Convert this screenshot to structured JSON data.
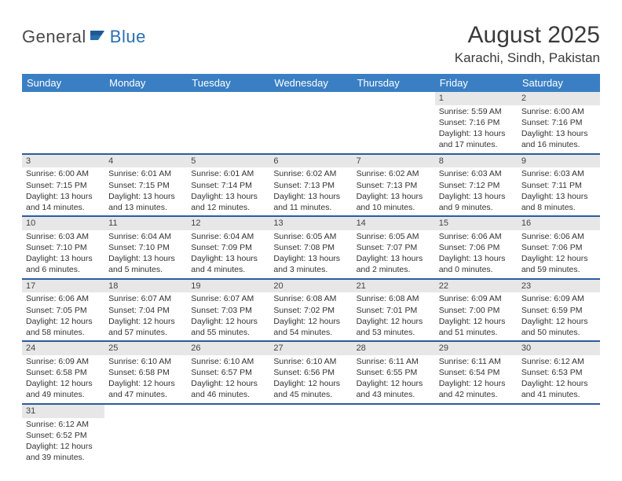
{
  "brand": {
    "part1": "General",
    "part2": "Blue"
  },
  "title": "August 2025",
  "location": "Karachi, Sindh, Pakistan",
  "colors": {
    "header_bg": "#3a7fc4",
    "header_text": "#ffffff",
    "row_divider": "#2b5d9e",
    "daynum_bg": "#e7e7e7",
    "brand_gray": "#4a4a4a",
    "brand_blue": "#2b6fb0"
  },
  "day_headers": [
    "Sunday",
    "Monday",
    "Tuesday",
    "Wednesday",
    "Thursday",
    "Friday",
    "Saturday"
  ],
  "weeks": [
    [
      {
        "n": "",
        "sr": "",
        "ss": "",
        "dl": ""
      },
      {
        "n": "",
        "sr": "",
        "ss": "",
        "dl": ""
      },
      {
        "n": "",
        "sr": "",
        "ss": "",
        "dl": ""
      },
      {
        "n": "",
        "sr": "",
        "ss": "",
        "dl": ""
      },
      {
        "n": "",
        "sr": "",
        "ss": "",
        "dl": ""
      },
      {
        "n": "1",
        "sr": "Sunrise: 5:59 AM",
        "ss": "Sunset: 7:16 PM",
        "dl": "Daylight: 13 hours and 17 minutes."
      },
      {
        "n": "2",
        "sr": "Sunrise: 6:00 AM",
        "ss": "Sunset: 7:16 PM",
        "dl": "Daylight: 13 hours and 16 minutes."
      }
    ],
    [
      {
        "n": "3",
        "sr": "Sunrise: 6:00 AM",
        "ss": "Sunset: 7:15 PM",
        "dl": "Daylight: 13 hours and 14 minutes."
      },
      {
        "n": "4",
        "sr": "Sunrise: 6:01 AM",
        "ss": "Sunset: 7:15 PM",
        "dl": "Daylight: 13 hours and 13 minutes."
      },
      {
        "n": "5",
        "sr": "Sunrise: 6:01 AM",
        "ss": "Sunset: 7:14 PM",
        "dl": "Daylight: 13 hours and 12 minutes."
      },
      {
        "n": "6",
        "sr": "Sunrise: 6:02 AM",
        "ss": "Sunset: 7:13 PM",
        "dl": "Daylight: 13 hours and 11 minutes."
      },
      {
        "n": "7",
        "sr": "Sunrise: 6:02 AM",
        "ss": "Sunset: 7:13 PM",
        "dl": "Daylight: 13 hours and 10 minutes."
      },
      {
        "n": "8",
        "sr": "Sunrise: 6:03 AM",
        "ss": "Sunset: 7:12 PM",
        "dl": "Daylight: 13 hours and 9 minutes."
      },
      {
        "n": "9",
        "sr": "Sunrise: 6:03 AM",
        "ss": "Sunset: 7:11 PM",
        "dl": "Daylight: 13 hours and 8 minutes."
      }
    ],
    [
      {
        "n": "10",
        "sr": "Sunrise: 6:03 AM",
        "ss": "Sunset: 7:10 PM",
        "dl": "Daylight: 13 hours and 6 minutes."
      },
      {
        "n": "11",
        "sr": "Sunrise: 6:04 AM",
        "ss": "Sunset: 7:10 PM",
        "dl": "Daylight: 13 hours and 5 minutes."
      },
      {
        "n": "12",
        "sr": "Sunrise: 6:04 AM",
        "ss": "Sunset: 7:09 PM",
        "dl": "Daylight: 13 hours and 4 minutes."
      },
      {
        "n": "13",
        "sr": "Sunrise: 6:05 AM",
        "ss": "Sunset: 7:08 PM",
        "dl": "Daylight: 13 hours and 3 minutes."
      },
      {
        "n": "14",
        "sr": "Sunrise: 6:05 AM",
        "ss": "Sunset: 7:07 PM",
        "dl": "Daylight: 13 hours and 2 minutes."
      },
      {
        "n": "15",
        "sr": "Sunrise: 6:06 AM",
        "ss": "Sunset: 7:06 PM",
        "dl": "Daylight: 13 hours and 0 minutes."
      },
      {
        "n": "16",
        "sr": "Sunrise: 6:06 AM",
        "ss": "Sunset: 7:06 PM",
        "dl": "Daylight: 12 hours and 59 minutes."
      }
    ],
    [
      {
        "n": "17",
        "sr": "Sunrise: 6:06 AM",
        "ss": "Sunset: 7:05 PM",
        "dl": "Daylight: 12 hours and 58 minutes."
      },
      {
        "n": "18",
        "sr": "Sunrise: 6:07 AM",
        "ss": "Sunset: 7:04 PM",
        "dl": "Daylight: 12 hours and 57 minutes."
      },
      {
        "n": "19",
        "sr": "Sunrise: 6:07 AM",
        "ss": "Sunset: 7:03 PM",
        "dl": "Daylight: 12 hours and 55 minutes."
      },
      {
        "n": "20",
        "sr": "Sunrise: 6:08 AM",
        "ss": "Sunset: 7:02 PM",
        "dl": "Daylight: 12 hours and 54 minutes."
      },
      {
        "n": "21",
        "sr": "Sunrise: 6:08 AM",
        "ss": "Sunset: 7:01 PM",
        "dl": "Daylight: 12 hours and 53 minutes."
      },
      {
        "n": "22",
        "sr": "Sunrise: 6:09 AM",
        "ss": "Sunset: 7:00 PM",
        "dl": "Daylight: 12 hours and 51 minutes."
      },
      {
        "n": "23",
        "sr": "Sunrise: 6:09 AM",
        "ss": "Sunset: 6:59 PM",
        "dl": "Daylight: 12 hours and 50 minutes."
      }
    ],
    [
      {
        "n": "24",
        "sr": "Sunrise: 6:09 AM",
        "ss": "Sunset: 6:58 PM",
        "dl": "Daylight: 12 hours and 49 minutes."
      },
      {
        "n": "25",
        "sr": "Sunrise: 6:10 AM",
        "ss": "Sunset: 6:58 PM",
        "dl": "Daylight: 12 hours and 47 minutes."
      },
      {
        "n": "26",
        "sr": "Sunrise: 6:10 AM",
        "ss": "Sunset: 6:57 PM",
        "dl": "Daylight: 12 hours and 46 minutes."
      },
      {
        "n": "27",
        "sr": "Sunrise: 6:10 AM",
        "ss": "Sunset: 6:56 PM",
        "dl": "Daylight: 12 hours and 45 minutes."
      },
      {
        "n": "28",
        "sr": "Sunrise: 6:11 AM",
        "ss": "Sunset: 6:55 PM",
        "dl": "Daylight: 12 hours and 43 minutes."
      },
      {
        "n": "29",
        "sr": "Sunrise: 6:11 AM",
        "ss": "Sunset: 6:54 PM",
        "dl": "Daylight: 12 hours and 42 minutes."
      },
      {
        "n": "30",
        "sr": "Sunrise: 6:12 AM",
        "ss": "Sunset: 6:53 PM",
        "dl": "Daylight: 12 hours and 41 minutes."
      }
    ],
    [
      {
        "n": "31",
        "sr": "Sunrise: 6:12 AM",
        "ss": "Sunset: 6:52 PM",
        "dl": "Daylight: 12 hours and 39 minutes."
      },
      {
        "n": "",
        "sr": "",
        "ss": "",
        "dl": ""
      },
      {
        "n": "",
        "sr": "",
        "ss": "",
        "dl": ""
      },
      {
        "n": "",
        "sr": "",
        "ss": "",
        "dl": ""
      },
      {
        "n": "",
        "sr": "",
        "ss": "",
        "dl": ""
      },
      {
        "n": "",
        "sr": "",
        "ss": "",
        "dl": ""
      },
      {
        "n": "",
        "sr": "",
        "ss": "",
        "dl": ""
      }
    ]
  ]
}
